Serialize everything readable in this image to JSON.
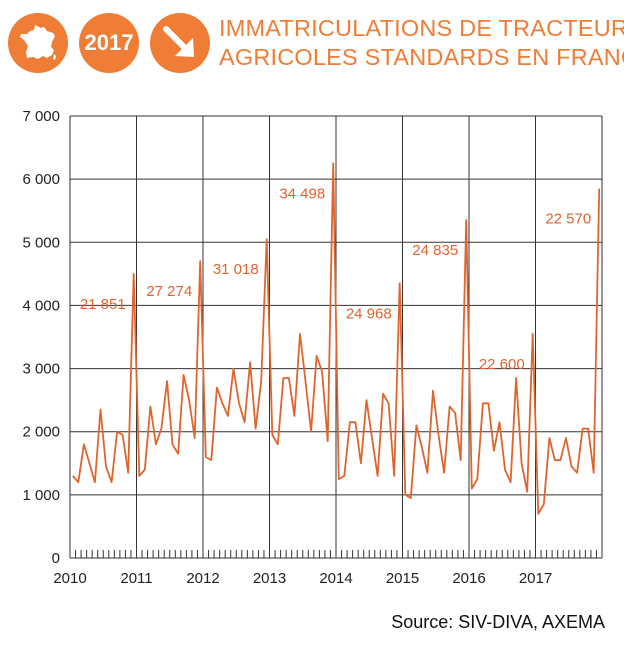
{
  "header": {
    "year": "2017",
    "title_line1": "IMMATRICULATIONS DE TRACTEURS",
    "title_line2": "AGRICOLES STANDARDS EN FRANCE",
    "icons": [
      "france-map-icon",
      "diagonal-down-arrow-icon"
    ]
  },
  "colors": {
    "accent": "#ef7d36",
    "line": "#e0642d",
    "grid": "#333333"
  },
  "source": "Source: SIV-DIVA, AXEMA",
  "chart_data": {
    "type": "line",
    "title": "IMMATRICULATIONS DE TRACTEURS AGRICOLES STANDARDS EN FRANCE",
    "xlabel": "",
    "ylabel": "",
    "ylim": [
      0,
      7000
    ],
    "yticks": [
      0,
      1000,
      2000,
      3000,
      4000,
      5000,
      6000,
      7000
    ],
    "ytick_labels": [
      "0",
      "1 000",
      "2 000",
      "3 000",
      "4 000",
      "5 000",
      "6 000",
      "7 000"
    ],
    "xtick_labels": [
      "2010",
      "2011",
      "2012",
      "2013",
      "2014",
      "2015",
      "2016",
      "2017"
    ],
    "grid": true,
    "frequency": "monthly",
    "series": [
      {
        "values": [
          1300,
          1200,
          1800,
          1500,
          1200,
          2350,
          1450,
          1200,
          2000,
          1950,
          1350,
          4500,
          1300,
          1400,
          2400,
          1800,
          2050,
          2800,
          1800,
          1650,
          2900,
          2500,
          1900,
          4700,
          1600,
          1550,
          2700,
          2450,
          2250,
          3000,
          2450,
          2150,
          3100,
          2050,
          2800,
          5050,
          1950,
          1800,
          2850,
          2850,
          2250,
          3550,
          2800,
          2000,
          3200,
          2950,
          1850,
          6250,
          1250,
          1300,
          2150,
          2150,
          1500,
          2500,
          1900,
          1300,
          2600,
          2450,
          1300,
          4350,
          1000,
          950,
          2100,
          1750,
          1350,
          2650,
          1950,
          1350,
          2400,
          2300,
          1550,
          5350,
          1100,
          1250,
          2450,
          2450,
          1700,
          2150,
          1400,
          1200,
          2850,
          1500,
          1050,
          3550,
          700,
          850,
          1900,
          1550,
          1550,
          1900,
          1450,
          1350,
          2050,
          2050,
          1350,
          5850
        ]
      }
    ],
    "annotations": [
      {
        "year": "2010",
        "text": "21 851"
      },
      {
        "year": "2011",
        "text": "27 274"
      },
      {
        "year": "2012",
        "text": "31 018"
      },
      {
        "year": "2013",
        "text": "34 498"
      },
      {
        "year": "2014",
        "text": "24 968"
      },
      {
        "year": "2015",
        "text": "24 835"
      },
      {
        "year": "2016",
        "text": "22 600"
      },
      {
        "year": "2017",
        "text": "22 570"
      }
    ]
  }
}
